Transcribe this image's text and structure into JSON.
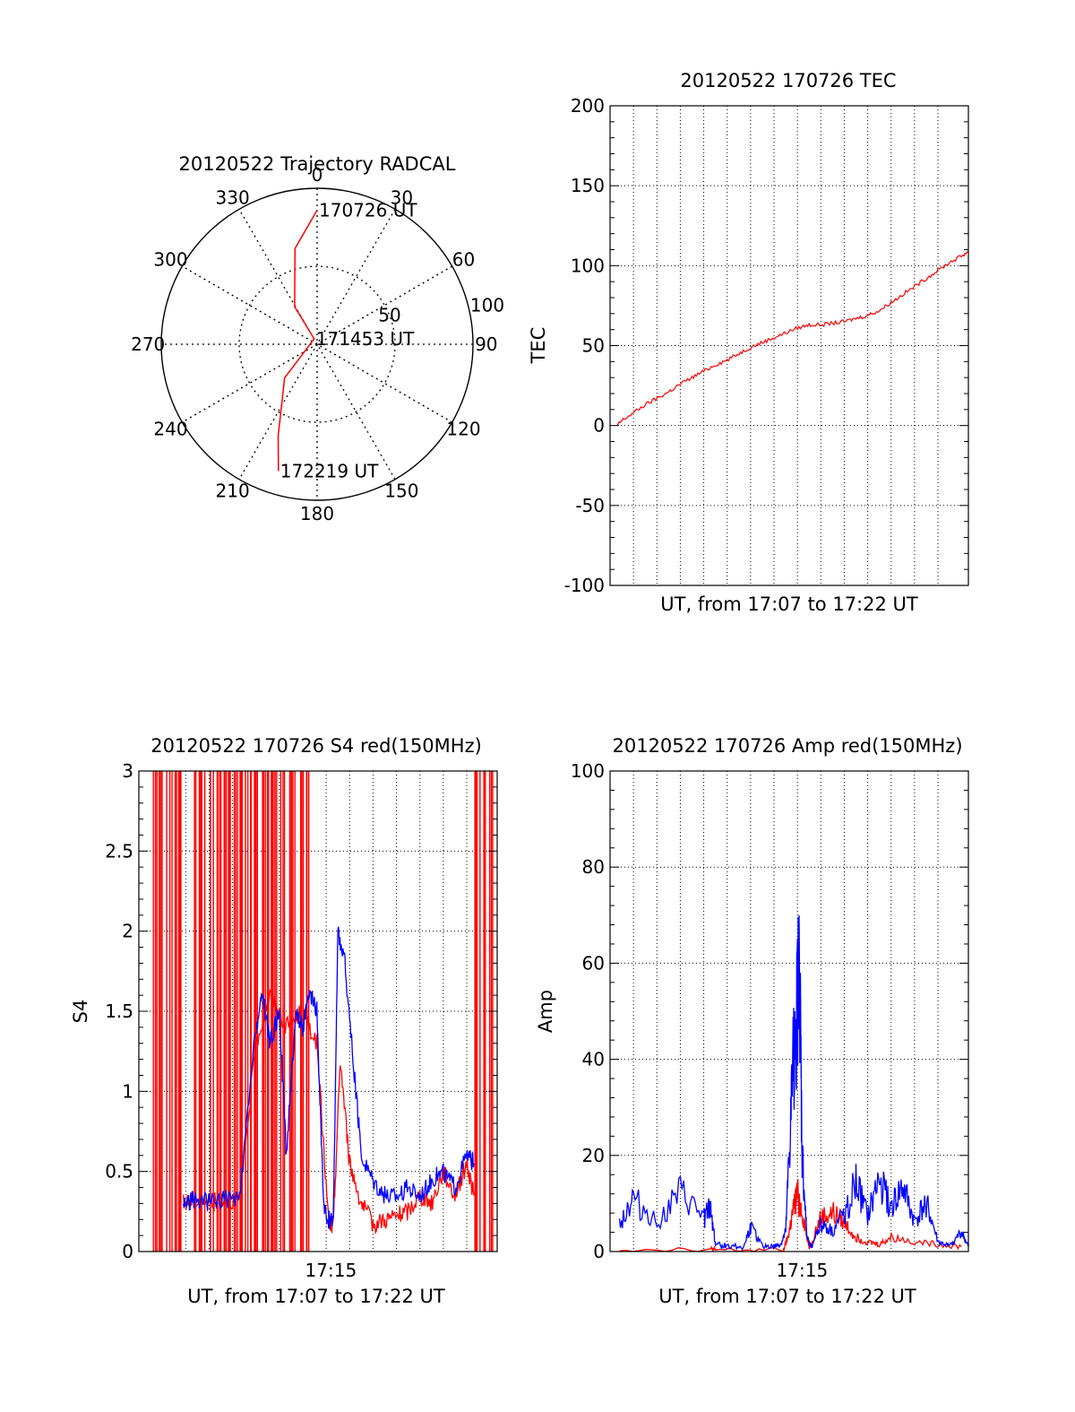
{
  "colors": {
    "red": "#ff0000",
    "blue": "#0000ff",
    "axis": "#000000",
    "grid": "#000000"
  },
  "chart_data": [
    {
      "id": "trajectory",
      "type": "polar",
      "title": "20120522 Trajectory RADCAL",
      "angle_labels": [
        "0",
        "30",
        "60",
        "90",
        "120",
        "150",
        "180",
        "210",
        "240",
        "270",
        "300",
        "330"
      ],
      "radius_labels": [
        "50",
        "100"
      ],
      "rlim": [
        0,
        100
      ],
      "grid": true,
      "series": [
        {
          "color": "red",
          "points": [
            [
              0,
              86
            ],
            [
              347,
              63
            ],
            [
              329,
              28
            ],
            [
              332,
              4
            ],
            [
              224,
              30
            ],
            [
              203,
              64
            ],
            [
              197,
              85
            ]
          ]
        }
      ],
      "annotations": [
        {
          "text": "170726 UT",
          "az": 0,
          "r": 86
        },
        {
          "text": "171453 UT",
          "az": 332,
          "r": 4
        },
        {
          "text": "172219 UT",
          "az": 197,
          "r": 85
        }
      ]
    },
    {
      "id": "tec",
      "type": "line",
      "title": "20120522 170726 TEC",
      "xlabel": "UT, from 17:07 to 17:22 UT",
      "ylabel": "TEC",
      "xlim": [
        0,
        15.3
      ],
      "ylim": [
        -100,
        200
      ],
      "yticks": [
        "-100",
        "-50",
        "0",
        "50",
        "100",
        "150",
        "200"
      ],
      "xticks": [],
      "grid": true,
      "series": [
        {
          "color": "red",
          "x": [
            0.3,
            0.5,
            1.0,
            1.5,
            2.0,
            2.5,
            3.0,
            3.5,
            4.0,
            4.5,
            5.0,
            5.5,
            6.0,
            6.5,
            7.0,
            7.5,
            8.0,
            8.5,
            9.0,
            9.5,
            10.0,
            10.5,
            11.0,
            11.5,
            12.0,
            12.5,
            13.0,
            13.5,
            14.0,
            14.5,
            15.0,
            15.3
          ],
          "y": [
            0,
            3,
            8,
            13,
            17,
            21,
            26,
            30,
            34,
            38,
            41,
            45,
            49,
            52,
            55,
            58,
            61,
            63,
            63,
            64,
            65,
            67,
            69,
            72,
            77,
            82,
            87,
            92,
            97,
            102,
            106,
            109
          ]
        }
      ]
    },
    {
      "id": "s4",
      "type": "line",
      "title": "20120522 170726 S4 red(150MHz)",
      "xlabel": "UT, from 17:07 to 17:22 UT",
      "ylabel": "S4",
      "xlim": [
        0,
        15.3
      ],
      "ylim": [
        0,
        3
      ],
      "yticks": [
        "0",
        "0.5",
        "1",
        "1.5",
        "2",
        "2.5",
        "3"
      ],
      "xticks": [
        {
          "label": "17:15",
          "x": 8.2
        }
      ],
      "grid": true,
      "series": [
        {
          "color": "red",
          "x": [
            1.9,
            2.3,
            3.1,
            3.6,
            4.3,
            5.0,
            5.6,
            6.3,
            7.0,
            7.6,
            8.1,
            8.3,
            8.6,
            9.0,
            9.5,
            10.0,
            10.5,
            11.0,
            11.5,
            12.0,
            12.5,
            13.0,
            13.5,
            14.0,
            14.3
          ],
          "y": [
            0.3,
            0.32,
            0.3,
            0.33,
            0.32,
            1.3,
            1.6,
            1.4,
            1.5,
            1.3,
            0.18,
            0.15,
            1.2,
            0.55,
            0.3,
            0.17,
            0.2,
            0.22,
            0.25,
            0.35,
            0.3,
            0.5,
            0.35,
            0.55,
            0.35
          ]
        },
        {
          "color": "blue",
          "x": [
            1.9,
            2.3,
            3.1,
            3.6,
            4.3,
            5.0,
            5.3,
            5.6,
            6.0,
            6.3,
            6.7,
            7.0,
            7.3,
            7.6,
            7.9,
            8.1,
            8.3,
            8.5,
            8.8,
            9.2,
            9.5,
            10.0,
            10.5,
            11.0,
            11.5,
            12.0,
            12.5,
            13.0,
            13.5,
            14.0,
            14.3
          ],
          "y": [
            0.3,
            0.32,
            0.31,
            0.33,
            0.32,
            1.4,
            1.6,
            1.3,
            1.5,
            0.6,
            1.5,
            1.4,
            1.6,
            1.5,
            0.25,
            0.2,
            0.2,
            2.0,
            1.8,
            1.1,
            0.6,
            0.45,
            0.35,
            0.35,
            0.4,
            0.35,
            0.45,
            0.5,
            0.4,
            0.6,
            0.55
          ]
        }
      ]
    },
    {
      "id": "amp",
      "type": "line",
      "title": "20120522 170726 Amp red(150MHz)",
      "xlabel": "UT, from 17:07 to 17:22 UT",
      "ylabel": "Amp",
      "xlim": [
        0,
        15.3
      ],
      "ylim": [
        0,
        100
      ],
      "yticks": [
        "0",
        "20",
        "40",
        "60",
        "80",
        "100"
      ],
      "xticks": [
        {
          "label": "17:15",
          "x": 8.2
        }
      ],
      "grid": true,
      "series": [
        {
          "color": "red",
          "x": [
            0.4,
            4.3,
            4.5,
            7.4,
            7.6,
            7.8,
            8.0,
            8.3,
            8.5,
            9.0,
            9.5,
            10.0,
            10.5,
            11.0,
            11.5,
            12.0,
            13.0,
            14.0,
            15.0
          ],
          "y": [
            0.5,
            0.5,
            0.3,
            0.3,
            3,
            8,
            12,
            6,
            1,
            7,
            8,
            6,
            3,
            2,
            1.5,
            3,
            2,
            1.5,
            1
          ]
        },
        {
          "color": "blue",
          "x": [
            0.4,
            1.0,
            2.0,
            3.0,
            4.0,
            4.3,
            4.5,
            5.0,
            5.7,
            6.0,
            6.5,
            7.0,
            7.3,
            7.5,
            7.7,
            7.9,
            8.1,
            8.2,
            8.4,
            8.6,
            9.0,
            9.5,
            10.0,
            10.5,
            11.0,
            11.5,
            12.0,
            12.5,
            13.0,
            13.5,
            14.0,
            14.5,
            15.0,
            15.3
          ],
          "y": [
            6,
            11,
            6,
            12,
            7,
            9,
            1.5,
            1.2,
            1,
            5,
            1.2,
            1,
            1.5,
            4,
            25,
            48,
            55,
            20,
            3,
            1,
            6,
            4,
            8,
            14,
            7,
            15,
            9,
            13,
            6,
            10,
            2,
            1,
            4,
            1
          ]
        }
      ]
    }
  ]
}
